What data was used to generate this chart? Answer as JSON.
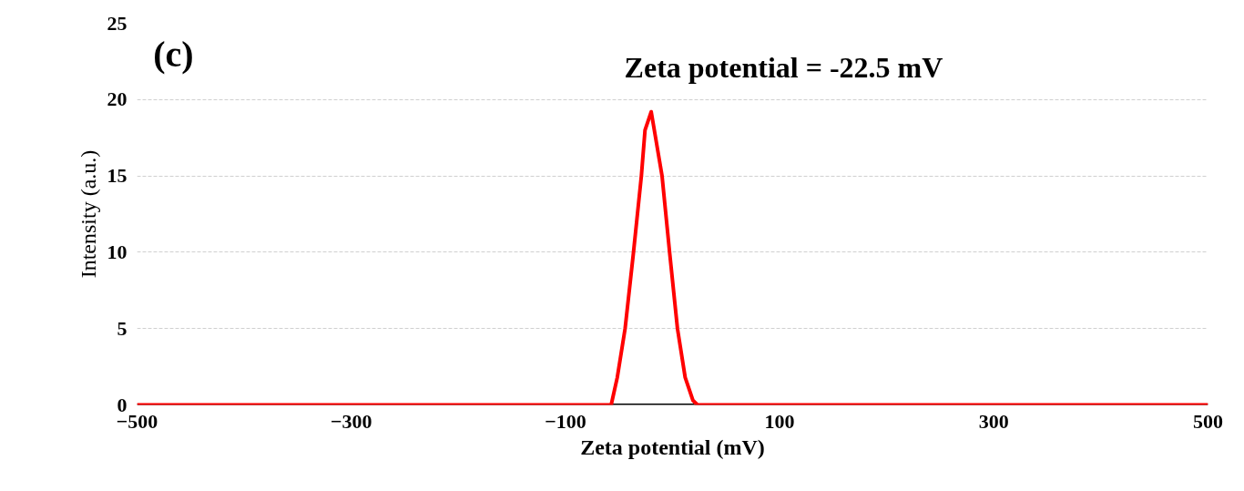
{
  "chart_data": {
    "type": "line",
    "xlabel": "Zeta potential (mV)",
    "ylabel": "Intensity (a.u.)",
    "annotations": [
      "(c)",
      "Zeta potential = -22.5 mV"
    ],
    "x": [
      -500,
      -60,
      -57.3,
      -51.6,
      -44.3,
      -36.6,
      -29.1,
      -25.7,
      -19.9,
      -9.8,
      -2.6,
      4.6,
      11.8,
      19,
      23.3,
      30,
      500
    ],
    "series": [
      {
        "color": "#ff0000",
        "values": [
          0,
          0,
          0,
          1.8,
          5.0,
          9.9,
          15,
          18,
          19.2,
          15,
          9.9,
          5.0,
          1.8,
          0.3,
          0,
          0,
          0
        ]
      }
    ],
    "xlim": [
      -500,
      500
    ],
    "xticks": [
      -500,
      -300,
      -100,
      100,
      300,
      500
    ],
    "ylim": [
      0,
      25
    ],
    "yticks": [
      0,
      5,
      10,
      15,
      20,
      25
    ],
    "grid": "y",
    "marker": "none",
    "line_style": "solid"
  }
}
